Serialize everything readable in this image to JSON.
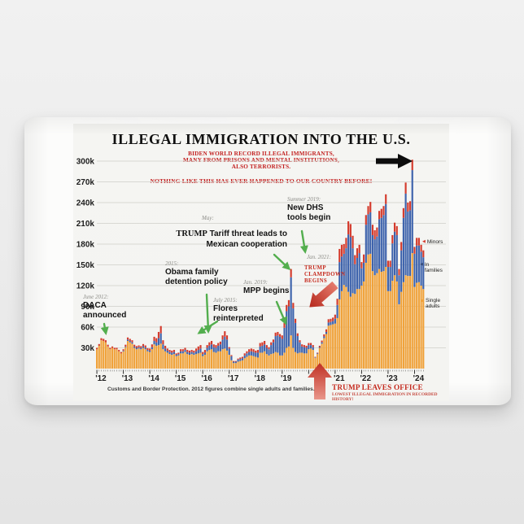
{
  "header": {
    "title": "ILLEGAL IMMIGRATION INTO THE U.S.",
    "callout": "BIDEN WORLD RECORD ILLEGAL IMMIGRANTS,\nMANY FROM PRISONS AND MENTAL INSTITUTIONS,\nALSO TERRORISTS.",
    "warning": "NOTHING LIKE THIS HAS EVER HAPPENED TO OUR COUNTRY BEFORE!"
  },
  "colors": {
    "single_adults": "#f0a23a",
    "families": "#3e63ac",
    "minors": "#d43a2c",
    "green_arrow": "#53ae4e",
    "red_accent": "#c52a1e",
    "black_arrow": "#0d0d0d"
  },
  "chart_data": {
    "type": "bar",
    "stacked": true,
    "title": "ILLEGAL IMMIGRATION INTO THE U.S.",
    "unit": "thousands of border apprehensions per month",
    "start_month": "2012-01",
    "end_month": "2024-05",
    "ylim": [
      0,
      310
    ],
    "grid": true,
    "y_axis": {
      "ticks": [
        {
          "value": 300,
          "label": "300k"
        },
        {
          "value": 270,
          "label": "270k"
        },
        {
          "value": 240,
          "label": "240k"
        },
        {
          "value": 210,
          "label": "210k"
        },
        {
          "value": 180,
          "label": "180k"
        },
        {
          "value": 150,
          "label": "150k"
        },
        {
          "value": 120,
          "label": "120k"
        },
        {
          "value": 90,
          "label": "90k"
        },
        {
          "value": 60,
          "label": "60k"
        },
        {
          "value": 30,
          "label": "30k"
        }
      ]
    },
    "x_axis": {
      "ticks": [
        {
          "year": 2012,
          "label": "'12"
        },
        {
          "year": 2013,
          "label": "'13"
        },
        {
          "year": 2014,
          "label": "'14"
        },
        {
          "year": 2015,
          "label": "'15"
        },
        {
          "year": 2016,
          "label": "'16"
        },
        {
          "year": 2017,
          "label": "'17"
        },
        {
          "year": 2018,
          "label": "'18"
        },
        {
          "year": 2019,
          "label": "'19"
        },
        {
          "year": 2021,
          "label": "'21"
        },
        {
          "year": 2022,
          "label": "'22"
        },
        {
          "year": 2023,
          "label": "'23"
        },
        {
          "year": 2024,
          "label": "'24"
        }
      ]
    },
    "series": [
      {
        "name": "Single adults",
        "color": "#f0a23a",
        "values": [
          28,
          33,
          41,
          40,
          38,
          32,
          28,
          30,
          28,
          28,
          25,
          22,
          25,
          31,
          40,
          38,
          36,
          30,
          28,
          29,
          28,
          30,
          28,
          25,
          24,
          28,
          35,
          33,
          34,
          36,
          28,
          25,
          23,
          21,
          20,
          21,
          18,
          19,
          22,
          22,
          24,
          21,
          20,
          21,
          20,
          21,
          22,
          23,
          18,
          20,
          25,
          27,
          28,
          24,
          23,
          25,
          25,
          28,
          29,
          26,
          20,
          12,
          8,
          8,
          10,
          11,
          12,
          15,
          17,
          19,
          19,
          18,
          17,
          16,
          23,
          23,
          25,
          21,
          19,
          21,
          22,
          24,
          23,
          19,
          19,
          23,
          30,
          32,
          48,
          30,
          24,
          22,
          23,
          23,
          22,
          22,
          28,
          29,
          27,
          15.5,
          21,
          30,
          36,
          44,
          50,
          62,
          63,
          64,
          65,
          73,
          100,
          112,
          121,
          118,
          111,
          104,
          109,
          108,
          115,
          115,
          120,
          126,
          153,
          165,
          166,
          141,
          135,
          138,
          144,
          140,
          141,
          147,
          112,
          112,
          127,
          135,
          126,
          93,
          111,
          125,
          135,
          134,
          134,
          167,
          118,
          124,
          125,
          120,
          115
        ]
      },
      {
        "name": "In families",
        "color": "#3e63ac",
        "values": [
          0,
          0,
          0,
          0,
          0,
          0,
          0,
          0,
          0,
          0,
          0,
          0,
          1,
          1,
          2,
          2,
          2,
          2,
          2,
          2,
          2,
          2.5,
          2.5,
          2,
          2,
          3,
          5,
          5,
          10,
          15,
          7,
          4,
          3,
          3,
          3,
          3,
          2,
          2,
          3,
          3,
          3,
          3,
          3,
          3,
          3,
          4,
          5,
          6,
          3,
          3,
          5,
          6,
          7,
          7,
          7,
          8,
          10,
          14,
          17,
          16,
          9,
          6,
          2,
          2,
          3,
          3,
          3,
          4,
          5,
          5,
          6,
          6,
          6,
          7,
          9,
          10,
          10,
          9,
          9,
          13,
          16,
          23,
          25,
          27,
          24,
          36,
          53,
          58,
          84,
          57,
          42,
          25,
          15,
          9,
          9,
          8,
          6,
          5,
          4,
          0.7,
          1,
          1.2,
          2,
          2.5,
          3,
          4.6,
          4.4,
          4.7,
          7,
          19,
          54,
          50,
          45,
          56,
          83,
          86,
          65,
          43,
          45,
          52,
          25,
          27,
          55,
          58,
          60,
          52,
          52,
          53,
          72,
          78,
          81,
          91,
          35,
          35,
          54,
          63,
          67,
          42,
          60,
          93,
          118,
          93,
          95,
          120,
          48,
          54,
          53,
          49,
          46
        ]
      },
      {
        "name": "Minors",
        "color": "#d43a2c",
        "values": [
          2,
          2.5,
          3,
          3,
          3,
          2.5,
          2,
          2,
          2,
          2,
          2,
          2,
          2,
          2.5,
          3,
          3,
          3,
          2.5,
          2.5,
          2.5,
          2.5,
          3,
          3,
          2.5,
          3,
          4,
          6,
          6,
          9,
          10.5,
          6,
          4,
          3,
          3,
          3,
          3,
          2,
          2,
          3,
          3,
          3,
          3,
          3,
          3,
          3,
          4,
          5,
          5,
          3,
          4,
          4,
          5,
          5,
          4,
          4,
          4,
          4,
          6,
          8,
          6,
          2,
          1.5,
          1,
          1,
          1.5,
          2,
          2,
          3,
          3,
          4,
          4,
          4,
          3,
          4,
          5,
          5,
          5,
          4,
          3,
          4,
          4,
          5,
          5,
          4,
          5,
          7,
          9,
          9,
          12,
          8,
          6,
          4,
          3,
          3,
          3,
          3,
          3,
          3,
          3,
          0.8,
          1,
          1.8,
          2.5,
          3,
          3.8,
          4.8,
          4.6,
          5,
          6,
          9,
          19,
          17,
          14,
          15,
          19,
          19,
          18,
          13,
          14,
          12,
          9,
          12,
          14,
          12,
          15,
          15,
          13,
          13,
          12,
          13,
          13,
          14,
          9,
          9,
          12,
          13,
          13,
          9,
          12,
          14,
          16,
          13,
          13,
          15,
          10,
          11,
          11,
          10,
          10
        ]
      }
    ],
    "legend": {
      "position": "right",
      "items": [
        {
          "label": "Minors",
          "color": "#d43a2c"
        },
        {
          "label": "In\nfamilies",
          "color": "#3b4f78"
        },
        {
          "label": "Single\nadults",
          "color": "#f0a23a"
        }
      ]
    },
    "annotations": {
      "daca": {
        "date": "June 2012:",
        "text": "DACA\nannounced"
      },
      "obama_detention": {
        "date": "2015:",
        "text": "Obama family\ndetention policy"
      },
      "flores": {
        "date": "July 2015:",
        "text": "Flores\nreinterpreted"
      },
      "mpp": {
        "date": "Jan. 2019:",
        "text": "MPP begins"
      },
      "tariff": {
        "date": "May:",
        "brand": "TRUMP",
        "text_rest": " Tariff threat leads to",
        "text_line2": "Mexican cooperation"
      },
      "dhs": {
        "date": "Summer 2019:",
        "text": "New DHS\ntools begin"
      },
      "jan_2021": {
        "date": "Jan. 2021:"
      },
      "clampdown": {
        "text": "TRUMP\nCLAMPDOWN\nBEGINS"
      },
      "leaves_office": {
        "title": "TRUMP LEAVES OFFICE",
        "subtitle": "LOWEST ILLEGAL IMMIGRATION IN RECORDED HISTORY!"
      }
    },
    "source": "Customs and Border Protection. 2012 figures combine single adults and families."
  }
}
